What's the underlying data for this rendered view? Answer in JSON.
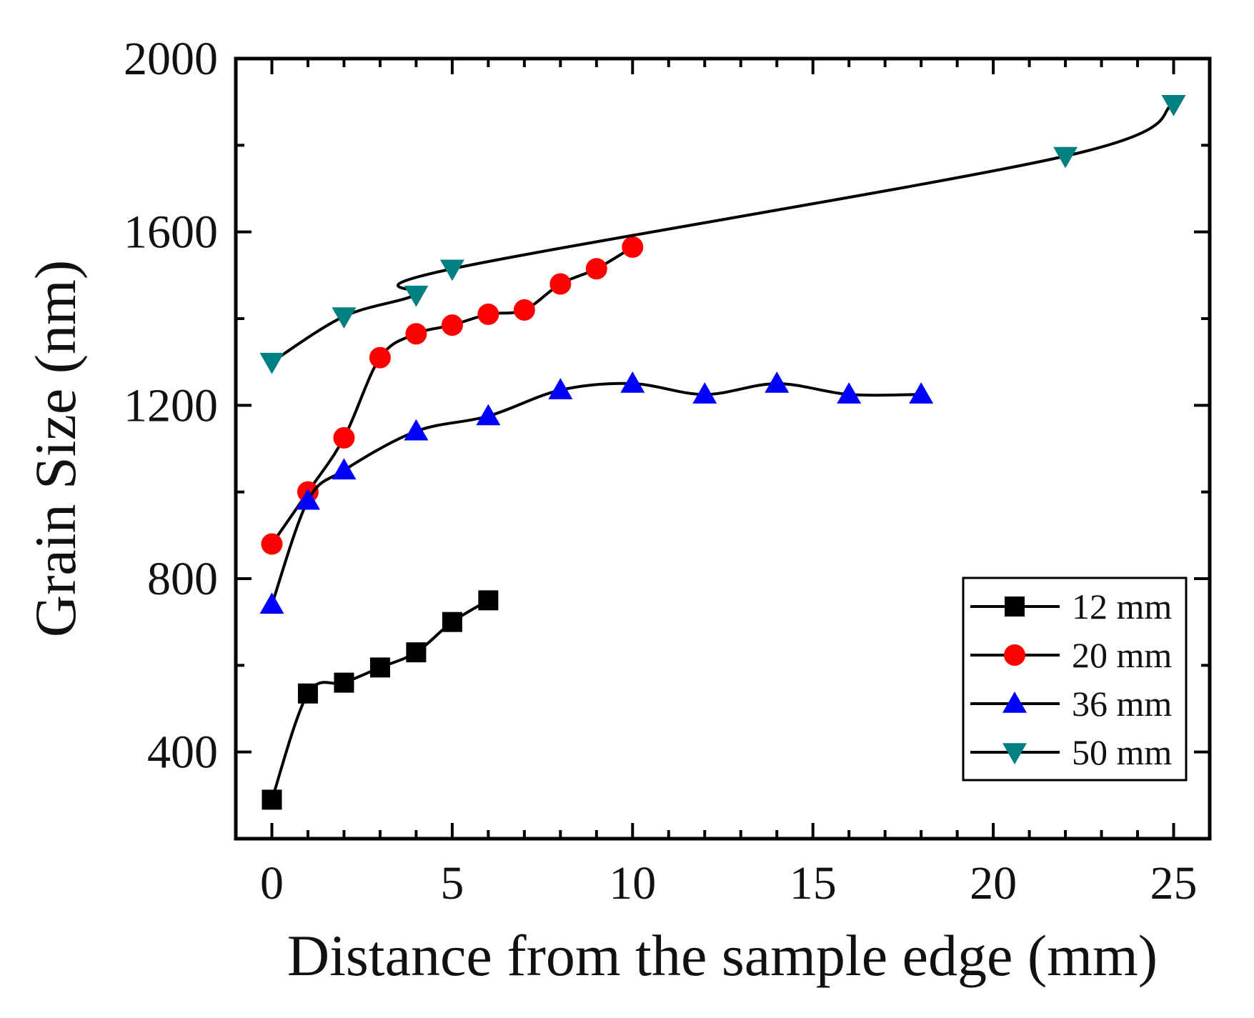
{
  "chart_data": {
    "type": "line",
    "title": "",
    "xlabel": "Distance from the sample edge (mm)",
    "ylabel": "Grain Size (nm)",
    "xlim": [
      -1,
      26
    ],
    "ylim": [
      200,
      2000
    ],
    "xticks": [
      0,
      5,
      10,
      15,
      20,
      25
    ],
    "yticks": [
      400,
      800,
      1200,
      1600,
      2000
    ],
    "grid": false,
    "legend_position": "bottom-right",
    "series": [
      {
        "name": "12 mm",
        "marker": "square",
        "color": "#000000",
        "x": [
          0,
          1,
          2,
          3,
          4,
          5,
          6
        ],
        "y": [
          290,
          535,
          560,
          595,
          630,
          700,
          750
        ]
      },
      {
        "name": "20 mm",
        "marker": "circle",
        "color": "#ff0000",
        "x": [
          0,
          1,
          2,
          3,
          4,
          5,
          6,
          7,
          8,
          9,
          10
        ],
        "y": [
          880,
          1000,
          1125,
          1310,
          1365,
          1385,
          1410,
          1420,
          1480,
          1515,
          1565
        ]
      },
      {
        "name": "36 mm",
        "marker": "triangle-up",
        "color": "#0000ff",
        "x": [
          0,
          1,
          2,
          4,
          6,
          8,
          10,
          12,
          14,
          16,
          18
        ],
        "y": [
          740,
          980,
          1050,
          1140,
          1175,
          1235,
          1250,
          1225,
          1250,
          1225,
          1225
        ]
      },
      {
        "name": "50 mm",
        "marker": "triangle-down",
        "color": "#008080",
        "x": [
          0,
          2,
          4,
          5,
          22,
          25
        ],
        "y": [
          1300,
          1405,
          1455,
          1515,
          1775,
          1895
        ]
      }
    ]
  }
}
